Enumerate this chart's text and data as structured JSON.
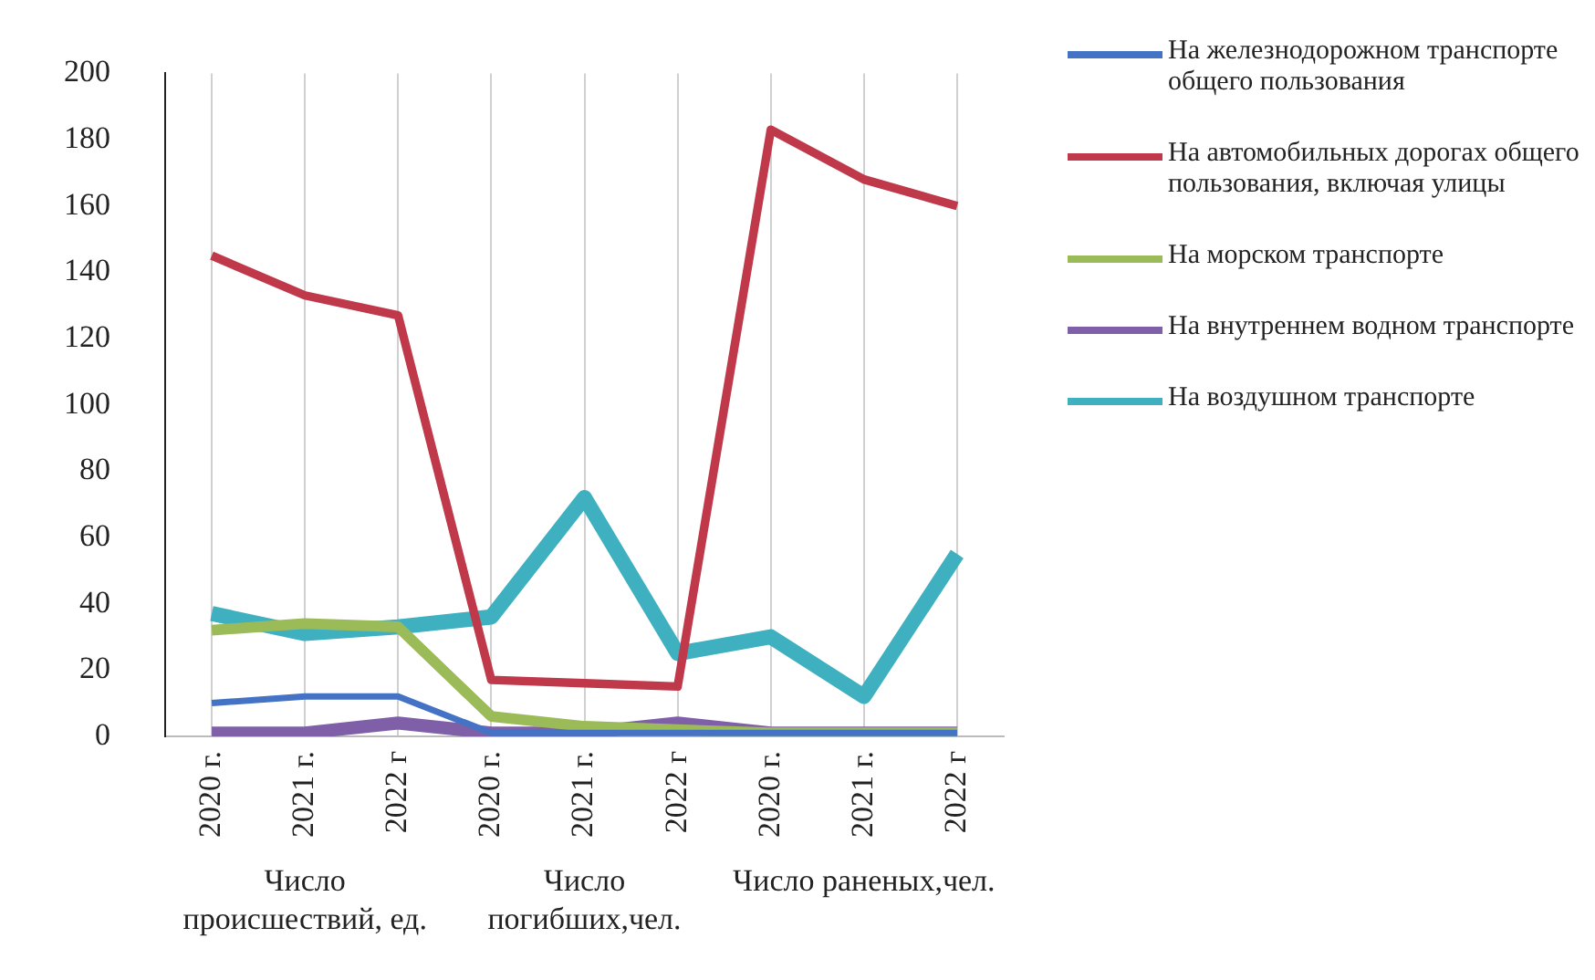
{
  "chart_data": {
    "type": "line",
    "categories": [
      "2020 г.",
      "2021 г.",
      "2022 г",
      "2020 г.",
      "2021 г.",
      "2022 г",
      "2020 г.",
      "2021 г.",
      "2022 г"
    ],
    "annotations": [
      "Число происшествий, ед.",
      "Число погибших,чел.",
      "Число раненых,чел."
    ],
    "series": [
      {
        "name": "На железнодорожном транспорте общего пользования",
        "color": "#4472c4",
        "values": [
          10,
          12,
          12,
          1,
          1,
          1,
          1,
          1,
          1
        ]
      },
      {
        "name": "На автомобильных дорогах общего пользования, включая улицы",
        "color": "#c0394a",
        "values": [
          145,
          133,
          127,
          17,
          16,
          15,
          183,
          168,
          160
        ]
      },
      {
        "name": "На морском транспорте",
        "color": "#9bbb59",
        "values": [
          32,
          34,
          33,
          6,
          3,
          2,
          1,
          1,
          1
        ]
      },
      {
        "name": "На внутреннем водном транспорте",
        "color": "#7f60a8",
        "values": [
          1,
          1,
          4,
          1,
          1,
          4,
          1,
          1,
          1
        ]
      },
      {
        "name": "На воздушном транспорте",
        "color": "#3fb0c0",
        "values": [
          37,
          31,
          33,
          36,
          72,
          25,
          30,
          12,
          55
        ]
      }
    ],
    "ylim": [
      0,
      200
    ],
    "yticks": [
      0,
      20,
      40,
      60,
      80,
      100,
      120,
      140,
      160,
      180,
      200
    ],
    "grid": "x",
    "legend": "right",
    "marker": "none",
    "line_style": "solid"
  }
}
